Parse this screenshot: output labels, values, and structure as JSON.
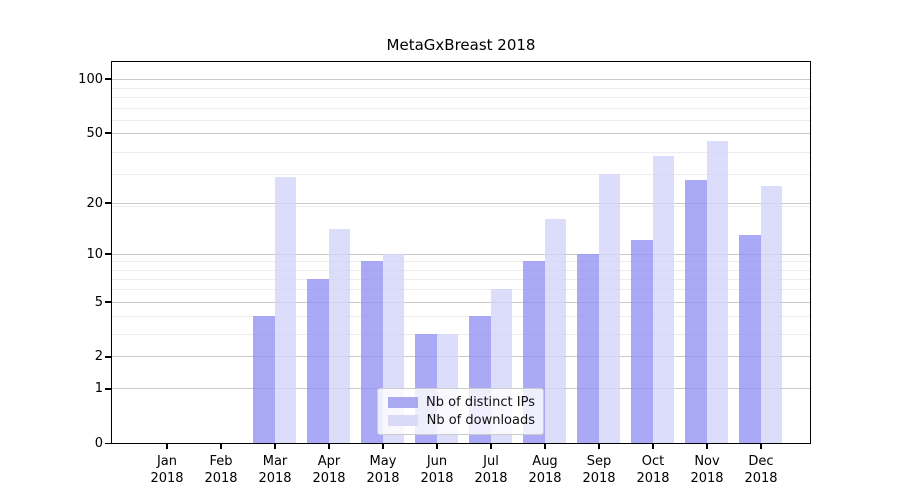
{
  "page": {
    "background": "#ffffff"
  },
  "chart_data": {
    "type": "bar",
    "title": "MetaGxBreast 2018",
    "categories": [
      "Jan",
      "Feb",
      "Mar",
      "Apr",
      "May",
      "Jun",
      "Jul",
      "Aug",
      "Sep",
      "Oct",
      "Nov",
      "Dec"
    ],
    "category_year": "2018",
    "series": [
      {
        "name": "Nb of distinct IPs",
        "color": "#a9a9f1",
        "fill_rgba": "rgba(147,147,242,0.8)",
        "values": [
          0,
          0,
          4,
          7,
          9,
          3,
          4,
          9,
          10,
          12,
          27,
          13
        ]
      },
      {
        "name": "Nb of downloads",
        "color": "#d9d9f8",
        "fill_rgba": "rgba(211,211,250,0.8)",
        "values": [
          0,
          0,
          28,
          14,
          10,
          3,
          6,
          16,
          29,
          37,
          45,
          25
        ]
      }
    ],
    "y_axis": {
      "scale": "log10(1+v)",
      "major_ticks": [
        0,
        1,
        2,
        5,
        10,
        20,
        50,
        100
      ],
      "minor_gridlines": [
        3,
        4,
        6,
        7,
        8,
        9,
        19,
        29,
        39,
        59,
        69,
        79,
        89
      ],
      "top_value": 127
    },
    "x_axis": {
      "tick_label_lines": 2
    },
    "legend": {
      "position": "inside-bottom-center"
    },
    "grid": true
  },
  "colors": {
    "major_grid": "#c9c9c9",
    "minor_grid": "#ececec",
    "axis": "#000000",
    "text": "#111111",
    "legend_border": "#cccccc"
  }
}
